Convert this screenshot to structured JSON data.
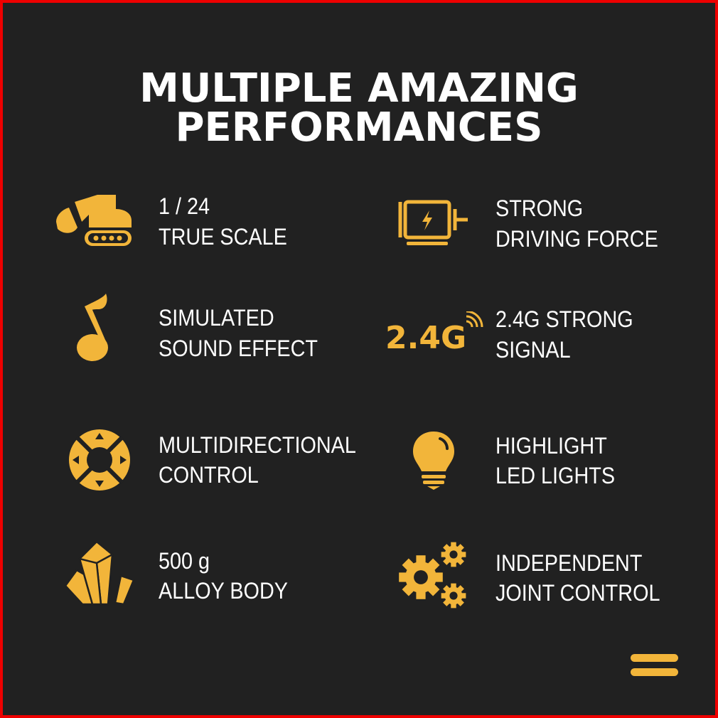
{
  "title": {
    "line1": "MULTIPLE AMAZING",
    "line2": "PERFORMANCES"
  },
  "accent_color": "#f2b53a",
  "background_color": "#212121",
  "border_color": "#ee0000",
  "features": [
    {
      "icon": "excavator-icon",
      "line1": "1 / 24",
      "line2": "TRUE SCALE"
    },
    {
      "icon": "motor-icon",
      "line1": "STRONG",
      "line2": "DRIVING FORCE"
    },
    {
      "icon": "music-note-icon",
      "line1": "SIMULATED",
      "line2": "SOUND EFFECT"
    },
    {
      "icon": "signal-2-4g-icon",
      "icon_text": "2.4G",
      "line1": "2.4G STRONG",
      "line2": "SIGNAL"
    },
    {
      "icon": "direction-pad-icon",
      "line1": "MULTIDIRECTIONAL",
      "line2": "CONTROL"
    },
    {
      "icon": "light-bulb-icon",
      "line1": "HIGHLIGHT",
      "line2": "LED LIGHTS"
    },
    {
      "icon": "crystal-icon",
      "line1": "500 g",
      "line2": "ALLOY BODY"
    },
    {
      "icon": "gears-icon",
      "line1": "INDEPENDENT",
      "line2": "JOINT CONTROL"
    }
  ]
}
